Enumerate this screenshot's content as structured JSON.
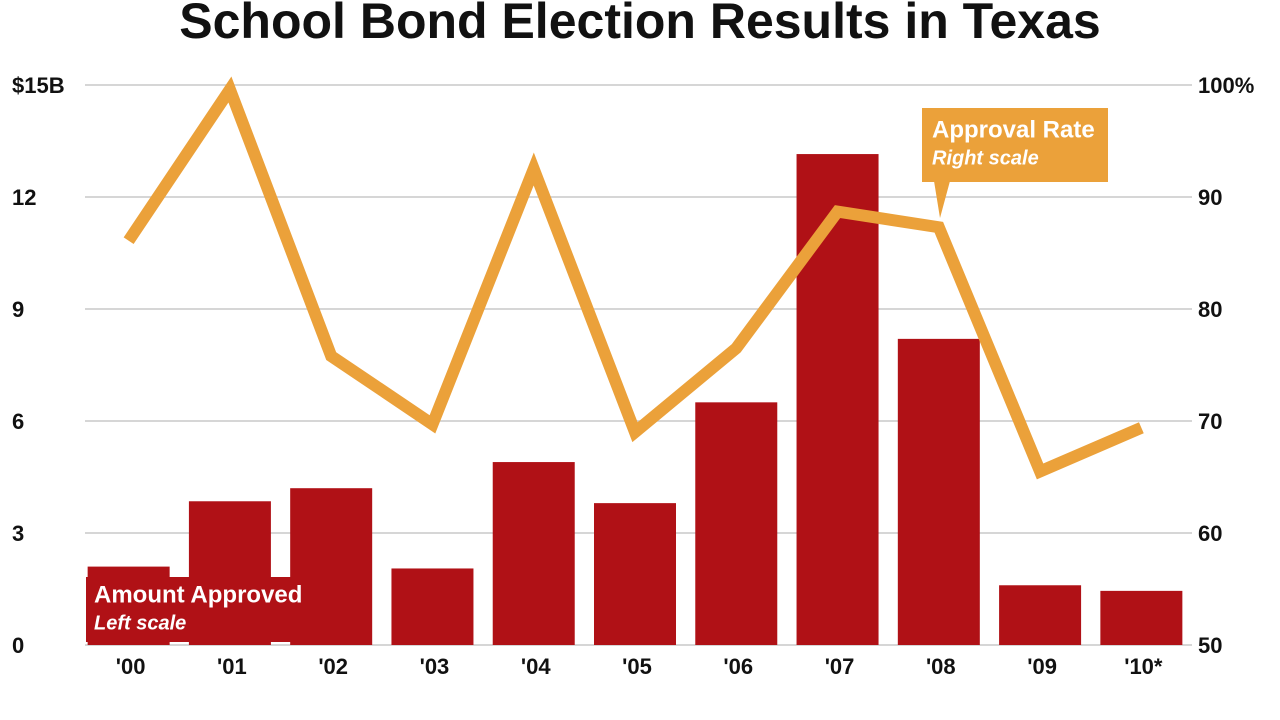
{
  "chart_data": {
    "type": "bar",
    "title": "School Bond Election Results in Texas",
    "categories": [
      "'00",
      "'01",
      "'02",
      "'03",
      "'04",
      "'05",
      "'06",
      "'07",
      "'08",
      "'09",
      "'10*"
    ],
    "series": [
      {
        "name": "Amount Approved",
        "scale_label": "Left scale",
        "type": "bar",
        "color": "#b01116",
        "values": [
          2.1,
          3.85,
          4.2,
          2.05,
          4.9,
          3.8,
          6.5,
          13.15,
          8.2,
          1.6,
          1.45
        ]
      },
      {
        "name": "Approval Rate",
        "scale_label": "Right scale",
        "type": "line",
        "axis": "y2",
        "color": "#eba13a",
        "values": [
          86.1,
          99.6,
          75.8,
          69.7,
          92.5,
          69,
          76.5,
          88.7,
          87.3,
          65.5,
          69.4
        ]
      }
    ],
    "ylim": [
      0,
      15
    ],
    "yticks": [
      0,
      3,
      6,
      9,
      12,
      {
        "value": 15,
        "label": "$15B"
      }
    ],
    "y2lim": [
      50,
      100
    ],
    "y2ticks": [
      50,
      60,
      70,
      80,
      90,
      {
        "value": 100,
        "label": "100%"
      }
    ],
    "grid": true
  }
}
